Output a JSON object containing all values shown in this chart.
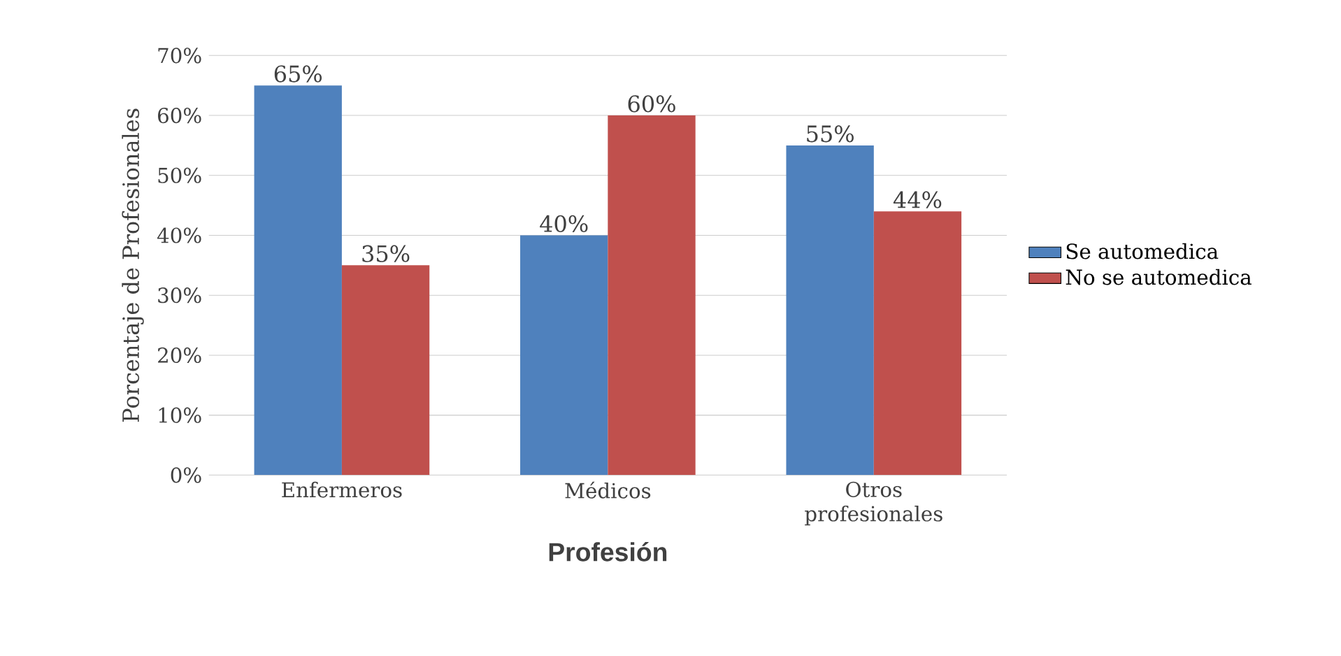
{
  "chart_data": {
    "type": "bar",
    "xlabel": "Profesión",
    "ylabel": "Porcentaje de Profesionales",
    "categories": [
      "Enfermeros",
      "Médicos",
      "Otros profesionales"
    ],
    "series": [
      {
        "name": "Se automedica",
        "color": "#4f81bd",
        "values": [
          65,
          40,
          55
        ],
        "value_labels": [
          "65%",
          "40%",
          "55%"
        ]
      },
      {
        "name": "No se automedica",
        "color": "#c0504d",
        "values": [
          35,
          60,
          44
        ],
        "value_labels": [
          "35%",
          "60%",
          "44%"
        ]
      }
    ],
    "ylim": [
      0,
      70
    ],
    "yticks": [
      {
        "value": 0,
        "label": "0%"
      },
      {
        "value": 10,
        "label": "10%"
      },
      {
        "value": 20,
        "label": "20%"
      },
      {
        "value": 30,
        "label": "30%"
      },
      {
        "value": 40,
        "label": "40%"
      },
      {
        "value": 50,
        "label": "50%"
      },
      {
        "value": 60,
        "label": "60%"
      },
      {
        "value": 70,
        "label": "70%"
      }
    ],
    "grid": "y",
    "legend": "right"
  }
}
